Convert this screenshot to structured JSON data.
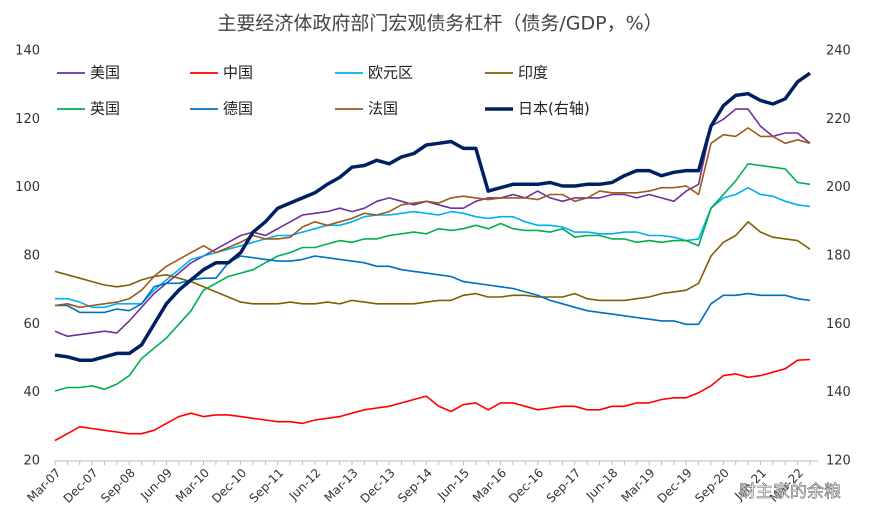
{
  "chart_data": {
    "type": "line",
    "title": "主要经济体政府部门宏观债务杠杆（债务/GDP，%）",
    "watermark": "财主家的余粮",
    "categories": [
      "Mar-07",
      null,
      null,
      "Dec-07",
      null,
      null,
      "Sep-08",
      null,
      null,
      "Jun-09",
      null,
      null,
      "Mar-10",
      null,
      null,
      "Dec-10",
      null,
      null,
      "Sep-11",
      null,
      null,
      "Jun-12",
      null,
      null,
      "Mar-13",
      null,
      null,
      "Dec-13",
      null,
      null,
      "Sep-14",
      null,
      null,
      "Jun-15",
      null,
      null,
      "Mar-16",
      null,
      null,
      "Dec-16",
      null,
      null,
      "Sep-17",
      null,
      null,
      "Jun-18",
      null,
      null,
      "Mar-19",
      null,
      null,
      "Dec-19",
      null,
      null,
      "Sep-20",
      null,
      null,
      "Jun-21",
      null,
      null,
      "Mar-22",
      null
    ],
    "ylim": [
      20,
      140
    ],
    "yticks": [
      20,
      40,
      60,
      80,
      100,
      120,
      140
    ],
    "y2lim": [
      120,
      240
    ],
    "y2ticks": [
      120,
      140,
      160,
      180,
      200,
      220,
      240
    ],
    "grid": false,
    "legend": "top",
    "series": [
      {
        "name": "美国",
        "color": "#7030a0",
        "values": [
          58,
          56.5,
          57,
          57.5,
          58,
          57.5,
          61,
          65,
          69,
          72,
          75,
          78,
          80,
          82,
          84,
          86,
          87,
          86,
          88,
          90,
          92,
          92.5,
          93,
          94,
          93,
          94,
          96,
          97,
          96,
          95,
          96,
          95,
          94,
          94,
          96,
          97,
          97,
          98,
          97,
          99,
          97,
          96,
          97,
          97,
          97,
          98,
          98,
          97,
          98,
          97,
          96,
          99,
          101,
          118,
          120,
          123,
          123,
          118,
          115,
          116,
          116,
          113
        ]
      },
      {
        "name": "中国",
        "color": "#ff0000",
        "values": [
          26,
          28,
          30,
          29.5,
          29,
          28.5,
          28,
          28,
          29,
          31,
          33,
          34,
          33,
          33.5,
          33.5,
          33,
          32.5,
          32,
          31.5,
          31.5,
          31,
          32,
          32.5,
          33,
          34,
          35,
          35.5,
          36,
          37,
          38,
          39,
          36,
          34.5,
          36.5,
          37,
          35,
          37,
          37,
          36,
          35,
          35.5,
          36,
          36,
          35,
          35,
          36,
          36,
          37,
          37,
          38,
          38.5,
          38.5,
          40,
          42,
          45,
          45.5,
          44.5,
          45,
          46,
          47,
          49.5,
          49.7
        ]
      },
      {
        "name": "欧元区",
        "color": "#00b0f0",
        "values": [
          67.5,
          67.5,
          66.5,
          65,
          65,
          66,
          66,
          66,
          70,
          73,
          76,
          79,
          80,
          81,
          82,
          83,
          84,
          85,
          86,
          86,
          87,
          88,
          89,
          89,
          90,
          91.5,
          92,
          92,
          92.5,
          93,
          92.5,
          92,
          93,
          92.5,
          91.5,
          91,
          91.5,
          91.5,
          90,
          89,
          89,
          88.5,
          87,
          87,
          86.5,
          86.5,
          87,
          87,
          86,
          86,
          85.5,
          84.5,
          85,
          94,
          97,
          98,
          100,
          98,
          97.5,
          96,
          95,
          94.5
        ]
      },
      {
        "name": "印度",
        "color": "#7f6000",
        "values": [
          75.5,
          74.5,
          73.5,
          72.5,
          71.5,
          71,
          71.5,
          73,
          74,
          74.5,
          73.5,
          72.5,
          71,
          69.5,
          68,
          66.5,
          66,
          66,
          66,
          66.5,
          66,
          66,
          66.5,
          66,
          67,
          66.5,
          66,
          66,
          66,
          66,
          66.5,
          67,
          67,
          68.5,
          69,
          68,
          68,
          68.5,
          68.5,
          68,
          68,
          68,
          69,
          67.5,
          67,
          67,
          67,
          67.5,
          68,
          69,
          69.5,
          70,
          72,
          80,
          84,
          86,
          90,
          87,
          85.5,
          85,
          84.5,
          82
        ]
      },
      {
        "name": "英国",
        "color": "#00b050",
        "values": [
          40.5,
          41.5,
          41.5,
          42,
          41,
          42.5,
          45,
          50,
          53,
          56,
          60,
          64,
          70,
          72,
          74,
          75,
          76,
          78,
          80,
          81,
          82.5,
          82.5,
          83.5,
          84.5,
          84,
          85,
          85,
          86,
          86.5,
          87,
          86.5,
          88,
          87.5,
          88,
          89,
          88,
          89.5,
          88,
          87.5,
          87.5,
          87,
          88,
          85.5,
          86,
          86,
          85,
          85,
          84,
          84.5,
          84,
          84.5,
          84.5,
          83,
          94,
          98,
          102,
          107,
          106.5,
          106,
          105.5,
          101.5,
          101
        ]
      },
      {
        "name": "德国",
        "color": "#0070c0",
        "values": [
          65.5,
          65.5,
          63.5,
          63.5,
          63.5,
          64.5,
          64,
          66,
          71,
          72,
          72,
          73,
          73.5,
          73.5,
          78,
          80,
          79.5,
          79,
          78.5,
          78.5,
          79,
          80,
          79.5,
          79,
          78.5,
          78,
          77,
          77,
          76,
          75.5,
          75,
          74.5,
          74,
          72.5,
          72,
          71.5,
          71,
          70.5,
          69.5,
          68.5,
          67,
          66,
          65,
          64,
          63.5,
          63,
          62.5,
          62,
          61.5,
          61,
          61,
          60,
          60,
          66,
          68.5,
          68.5,
          69,
          68.5,
          68.5,
          68.5,
          67.5,
          67
        ]
      },
      {
        "name": "法国",
        "color": "#9c5a1c",
        "values": [
          65.5,
          66,
          65,
          65.5,
          66,
          66.5,
          67.5,
          70,
          74,
          77,
          79,
          81,
          83,
          81,
          82.5,
          84,
          86,
          85,
          85,
          85.5,
          88.5,
          90,
          89,
          90,
          91,
          92.5,
          92,
          93,
          95,
          95.5,
          96,
          95.5,
          97,
          97.5,
          97,
          96.5,
          97,
          97,
          97,
          96.5,
          98,
          98,
          96,
          97,
          99,
          98.5,
          98.5,
          98.5,
          99,
          100,
          100,
          100.5,
          98,
          113,
          115.5,
          115,
          117.5,
          115,
          115,
          113,
          114,
          113
        ]
      },
      {
        "name": "日本(右轴)",
        "color": "#002060",
        "axis": "y2",
        "values": [
          151,
          150.5,
          149.5,
          149.5,
          150.5,
          151.5,
          151.5,
          154,
          160,
          166,
          170,
          173,
          176,
          178,
          178,
          181,
          187,
          190,
          194,
          195.5,
          197,
          198.5,
          201,
          203,
          206,
          206.5,
          208,
          207,
          209,
          210,
          212.5,
          213,
          213.5,
          211.5,
          211.5,
          199,
          200,
          201,
          201,
          201,
          201.5,
          200.5,
          200.5,
          201,
          201,
          201.5,
          203.5,
          205,
          205,
          203.5,
          204.5,
          205,
          205,
          218,
          224,
          227,
          227.5,
          225.5,
          224.5,
          226,
          231,
          233.5
        ]
      }
    ]
  }
}
